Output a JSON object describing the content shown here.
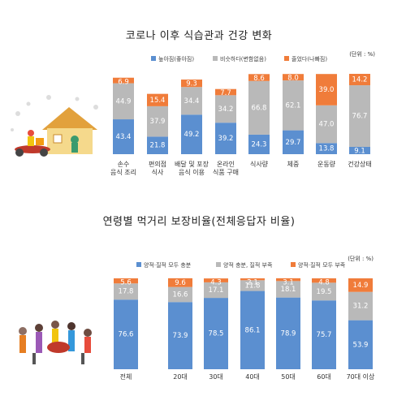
{
  "chart_data": [
    {
      "type": "bar",
      "stacked": true,
      "title": "코로나 이후 식습관과 건강 변화",
      "unit": "(단위 : %)",
      "categories": [
        "손수\n음식 조리",
        "편의점\n식사",
        "배달 및 포장\n음식 이용",
        "온라인\n식품 구매",
        "식사량",
        "체중",
        "운동량",
        "건강상태"
      ],
      "series": [
        {
          "name": "높아짐(좋아짐)",
          "color": "#5b8fd0",
          "values": [
            43.4,
            21.8,
            49.2,
            39.2,
            24.3,
            29.7,
            13.8,
            9.1
          ],
          "value_labels": [
            "43.4",
            "21.8",
            "49.2",
            "39.2",
            "24.3",
            "29.7",
            "13.8",
            "9.1"
          ]
        },
        {
          "name": "비슷하다(변함없음)",
          "color": "#b9b9b9",
          "values": [
            44.9,
            37.9,
            34.4,
            34.2,
            66.8,
            62.1,
            47.0,
            76.7
          ],
          "value_labels": [
            "44.9",
            "37.9",
            "34.4",
            "34.2",
            "66.8",
            "62.1",
            "47.0",
            "76.7"
          ]
        },
        {
          "name": "줄었다(나빠짐)",
          "color": "#f07c3a",
          "values": [
            6.9,
            15.4,
            9.3,
            7.7,
            8.6,
            8.0,
            39.0,
            14.2
          ],
          "value_labels": [
            "6.9",
            "15.4",
            "9.3",
            "7.7",
            "8.6",
            "8.0",
            "39.0",
            "14.2"
          ]
        }
      ]
    },
    {
      "type": "bar",
      "stacked": true,
      "title": "연령별 먹거리 보장비율(전체응답자 비율)",
      "unit": "(단위 : %)",
      "categories": [
        "전체",
        "20대",
        "30대",
        "40대",
        "50대",
        "60대",
        "70대 이상"
      ],
      "series": [
        {
          "name": "양적·질적 모두 충분",
          "color": "#5b8fd0",
          "values": [
            76.6,
            73.9,
            78.5,
            86.1,
            78.9,
            75.7,
            53.9
          ],
          "value_labels": [
            "76.6",
            "73.9",
            "78.5",
            "86.1",
            "78.9",
            "75.7",
            "53.9"
          ]
        },
        {
          "name": "양적 충분, 질적 부족",
          "color": "#b9b9b9",
          "values": [
            17.8,
            16.6,
            17.1,
            11.8,
            18.1,
            19.5,
            31.2
          ],
          "value_labels": [
            "17.8",
            "16.6",
            "17.1",
            "11.8",
            "18.1",
            "19.5",
            "31.2"
          ]
        },
        {
          "name": "양적·질적 모두 부족",
          "color": "#f07c3a",
          "values": [
            5.6,
            9.6,
            4.3,
            2.1,
            3.1,
            4.8,
            14.9
          ],
          "value_labels": [
            "5.6",
            "9.6",
            "4.3",
            "2.1",
            "3.1",
            "4.8",
            "14.9"
          ]
        }
      ]
    }
  ]
}
